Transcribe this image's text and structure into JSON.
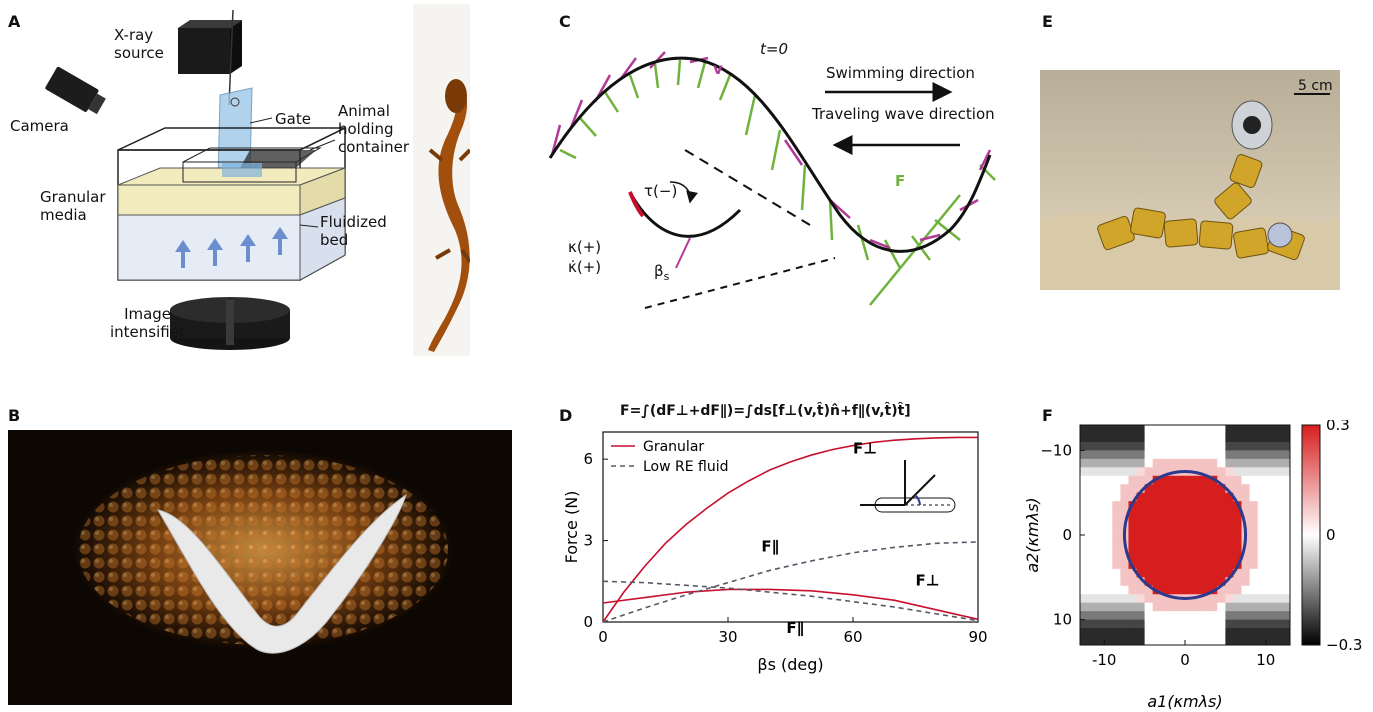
{
  "panels": {
    "A": {
      "letter": "A",
      "labels": {
        "xray_line1": "X-ray",
        "xray_line2": "source",
        "camera": "Camera",
        "gate": "Gate",
        "holding_line1": "Animal",
        "holding_line2": "holding",
        "holding_line3": "container",
        "granular_line1": "Granular",
        "granular_line2": "media",
        "fluid_line1": "Fluidized",
        "fluid_line2": "bed",
        "intens_line1": "Image",
        "intens_line2": "intensifier"
      }
    },
    "B": {
      "letter": "B"
    },
    "C": {
      "letter": "C",
      "time_label": "t=0",
      "swim_label": "Swimming direction",
      "wave_label": "Traveling wave direction",
      "v_label": "v",
      "F_label": "F",
      "tau_label": "τ(−)",
      "kappa_label": "κ(+)",
      "kappadot_label": "κ̇(+)",
      "beta_label": "β",
      "beta_sub": "s"
    },
    "D": {
      "letter": "D",
      "equation": "F=∫(dF⊥+dF∥)=∫ds[f⊥(v,t̂)n̂+f∥(v,t̂)t̂]",
      "legend": {
        "granular": "Granular",
        "low_re": "Low RE fluid"
      }
    },
    "E": {
      "letter": "E",
      "scale_label": "5 cm"
    },
    "F": {
      "letter": "F",
      "colorbar_ticks": [
        "0.3",
        "0",
        "−0.3"
      ]
    }
  },
  "chart_data": [
    {
      "type": "line",
      "xlabel": "βs (deg)",
      "ylabel": "Force (N)",
      "xlim": [
        0,
        90
      ],
      "ylim": [
        0,
        7
      ],
      "xticks": [
        0,
        30,
        60,
        90
      ],
      "yticks": [
        0,
        3,
        6
      ],
      "series": [
        {
          "name": "Granular",
          "label": "F⊥",
          "color": "#c8102e",
          "dash": false,
          "x": [
            0,
            5,
            10,
            15,
            20,
            25,
            30,
            35,
            40,
            45,
            50,
            55,
            60,
            65,
            70,
            75,
            80,
            85,
            90
          ],
          "y": [
            0,
            1.1,
            2.05,
            2.9,
            3.6,
            4.2,
            4.75,
            5.2,
            5.6,
            5.9,
            6.15,
            6.35,
            6.5,
            6.62,
            6.7,
            6.75,
            6.78,
            6.8,
            6.8
          ]
        },
        {
          "name": "Granular",
          "label": "F∥",
          "color": "#c8102e",
          "dash": false,
          "x": [
            0,
            10,
            20,
            30,
            40,
            50,
            60,
            70,
            80,
            90
          ],
          "y": [
            0.7,
            0.9,
            1.1,
            1.2,
            1.2,
            1.15,
            1.0,
            0.8,
            0.45,
            0.1
          ]
        },
        {
          "name": "Low RE fluid",
          "label": "F⊥",
          "color": "#555a66",
          "dash": true,
          "x": [
            0,
            10,
            20,
            30,
            40,
            50,
            60,
            70,
            80,
            90
          ],
          "y": [
            0,
            0.52,
            1.0,
            1.45,
            1.9,
            2.25,
            2.55,
            2.75,
            2.9,
            2.95
          ]
        },
        {
          "name": "Low RE fluid",
          "label": "F∥",
          "color": "#555a66",
          "dash": true,
          "x": [
            0,
            10,
            20,
            30,
            40,
            50,
            60,
            70,
            80,
            90
          ],
          "y": [
            1.5,
            1.45,
            1.35,
            1.25,
            1.1,
            0.95,
            0.75,
            0.55,
            0.3,
            0.05
          ]
        }
      ],
      "legend_position": "top-left"
    },
    {
      "type": "heatmap",
      "xlabel": "a1(κmλs)",
      "ylabel": "a2(κmλs)",
      "xticks": [
        -10,
        0,
        10
      ],
      "yticks": [
        -10,
        0,
        10
      ],
      "xlim": [
        -13,
        13
      ],
      "ylim": [
        -13,
        13
      ],
      "colorbar": {
        "min": -0.3,
        "max": 0.3,
        "ticks": [
          0.3,
          0,
          -0.3
        ]
      },
      "ellipse": {
        "cx": 0,
        "cy": 0,
        "rx": 7.5,
        "ry": 7.5,
        "color": "#2b3a8c"
      }
    }
  ]
}
